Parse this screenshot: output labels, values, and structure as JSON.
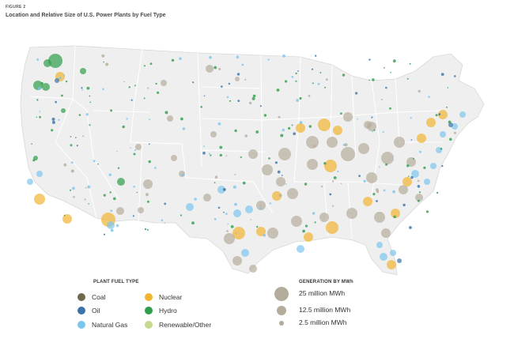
{
  "figure_label": "FIGURE 2",
  "title": "Location and Relative Size of U.S. Power Plants by Fuel Type",
  "legend": {
    "fuel_title": "PLANT FUEL TYPE",
    "fuel_types": [
      {
        "label": "Coal",
        "color": "#6f6a4c"
      },
      {
        "label": "Nuclear",
        "color": "#f2b431"
      },
      {
        "label": "Oil",
        "color": "#3a73a8"
      },
      {
        "label": "Hydro",
        "color": "#2f9e4c"
      },
      {
        "label": "Natural Gas",
        "color": "#7cc6ee"
      },
      {
        "label": "Renewable/Other",
        "color": "#c7d98e"
      }
    ],
    "generation_title": "GENERATION BY MWh",
    "generation_sizes": [
      {
        "label": "25 million MWh",
        "mwh": 25
      },
      {
        "label": "12.5 million MWh",
        "mwh": 12.5
      },
      {
        "label": "2.5 million MWh",
        "mwh": 2.5
      }
    ]
  },
  "map_colors": {
    "land": "#efefef",
    "border": "#ffffff",
    "coal_plant": "#b5ad9c",
    "nuclear_plant": "#f2b431",
    "gas_plant": "#7cc6ee",
    "hydro_plant": "#2f9e4c",
    "oil_plant": "#3a73a8"
  }
}
